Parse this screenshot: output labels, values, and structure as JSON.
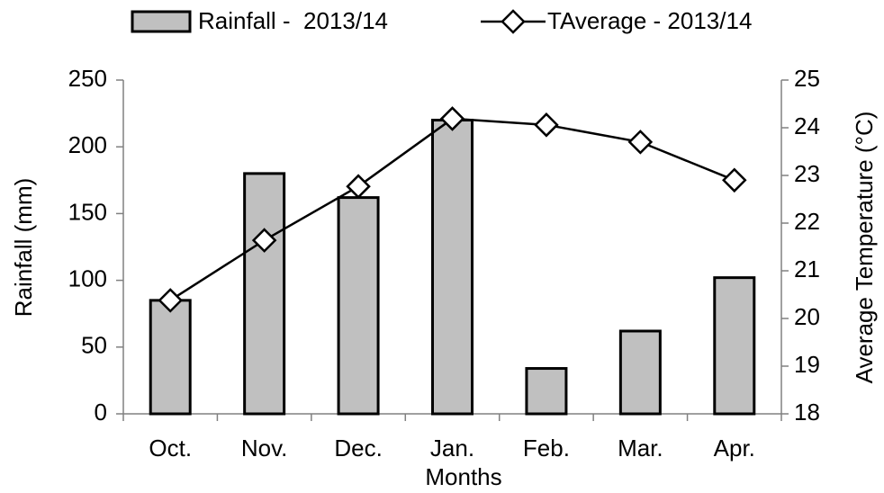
{
  "chart_data": {
    "type": "bar",
    "categories": [
      "Oct.",
      "Nov.",
      "Dec.",
      "Jan.",
      "Feb.",
      "Mar.",
      "Apr."
    ],
    "series": [
      {
        "name": "Rainfall -  2013/14",
        "type": "bar",
        "color": "#c0c0c0",
        "values": [
          85,
          180,
          162,
          220,
          34,
          62,
          102
        ]
      },
      {
        "name": "TAverage - 2013/14",
        "type": "line",
        "axis": "y2",
        "color": "#000000",
        "values": [
          20.38,
          21.64,
          22.77,
          24.19,
          24.06,
          23.7,
          22.9
        ]
      }
    ],
    "xlabel": "Months",
    "ylabel": "Rainfall (mm)",
    "y2label": "Average Temperature (°C)",
    "ylim": [
      0,
      250
    ],
    "yticks": [
      0,
      50,
      100,
      150,
      200,
      250
    ],
    "y2lim": [
      18,
      25
    ],
    "y2ticks": [
      18,
      19,
      20,
      21,
      22,
      23,
      24,
      25
    ],
    "legend": "top"
  }
}
